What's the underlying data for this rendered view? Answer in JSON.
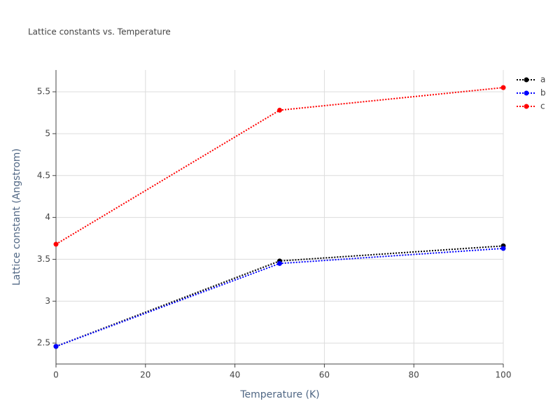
{
  "chart_data": {
    "type": "line",
    "title": "Lattice constants vs. Temperature",
    "x_label": "Temperature (K)",
    "y_label": "Lattice constant (Angstrom)",
    "x": [
      0,
      50,
      100
    ],
    "series": [
      {
        "name": "a",
        "color": "#000000",
        "values": [
          2.46,
          3.48,
          3.66
        ]
      },
      {
        "name": "b",
        "color": "#0000ff",
        "values": [
          2.46,
          3.45,
          3.63
        ]
      },
      {
        "name": "c",
        "color": "#ff0000",
        "values": [
          3.68,
          5.28,
          5.55
        ]
      }
    ],
    "xlim": [
      0,
      100
    ],
    "xticks": [
      0,
      20,
      40,
      60,
      80,
      100
    ],
    "ylim": [
      2.25,
      5.76
    ],
    "yticks": [
      2.5,
      3,
      3.5,
      4,
      4.5,
      5,
      5.5
    ],
    "grid": true,
    "legend": "top-right"
  }
}
